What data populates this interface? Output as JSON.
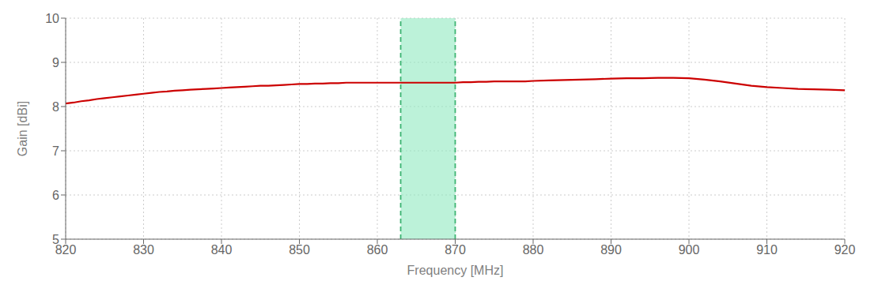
{
  "chart_data": {
    "type": "line",
    "xlabel": "Frequency [MHz]",
    "ylabel": "Gain [dBi]",
    "xlim": [
      820,
      920
    ],
    "ylim": [
      5,
      10
    ],
    "xticks": [
      820,
      830,
      840,
      850,
      860,
      870,
      880,
      890,
      900,
      910,
      920
    ],
    "yticks": [
      5,
      6,
      7,
      8,
      9,
      10
    ],
    "grid": true,
    "color": "#CC0000",
    "highlight": {
      "xmin": 863,
      "xmax": 870,
      "color": "#90EAC0",
      "edge_color": "#3CB371"
    },
    "x": [
      820,
      821,
      822,
      823,
      824,
      825,
      826,
      827,
      828,
      829,
      830,
      831,
      832,
      833,
      834,
      835,
      836,
      837,
      838,
      839,
      840,
      841,
      842,
      843,
      844,
      845,
      846,
      847,
      848,
      849,
      850,
      851,
      852,
      853,
      854,
      855,
      856,
      857,
      858,
      859,
      860,
      861,
      862,
      863,
      864,
      865,
      866,
      867,
      868,
      869,
      870,
      871,
      872,
      873,
      874,
      875,
      876,
      877,
      878,
      879,
      880,
      882,
      884,
      886,
      888,
      890,
      892,
      894,
      896,
      898,
      900,
      902,
      904,
      906,
      908,
      910,
      912,
      914,
      916,
      918,
      920
    ],
    "values": [
      8.07,
      8.09,
      8.12,
      8.14,
      8.17,
      8.19,
      8.21,
      8.23,
      8.25,
      8.27,
      8.29,
      8.31,
      8.33,
      8.34,
      8.36,
      8.37,
      8.38,
      8.39,
      8.4,
      8.41,
      8.42,
      8.43,
      8.44,
      8.45,
      8.46,
      8.47,
      8.47,
      8.48,
      8.49,
      8.5,
      8.51,
      8.51,
      8.52,
      8.52,
      8.53,
      8.53,
      8.54,
      8.54,
      8.54,
      8.54,
      8.54,
      8.54,
      8.54,
      8.54,
      8.54,
      8.54,
      8.54,
      8.54,
      8.54,
      8.54,
      8.54,
      8.55,
      8.55,
      8.56,
      8.56,
      8.57,
      8.57,
      8.57,
      8.57,
      8.57,
      8.58,
      8.59,
      8.6,
      8.61,
      8.62,
      8.63,
      8.64,
      8.64,
      8.65,
      8.65,
      8.64,
      8.61,
      8.57,
      8.52,
      8.47,
      8.44,
      8.42,
      8.4,
      8.39,
      8.38,
      8.37
    ]
  }
}
